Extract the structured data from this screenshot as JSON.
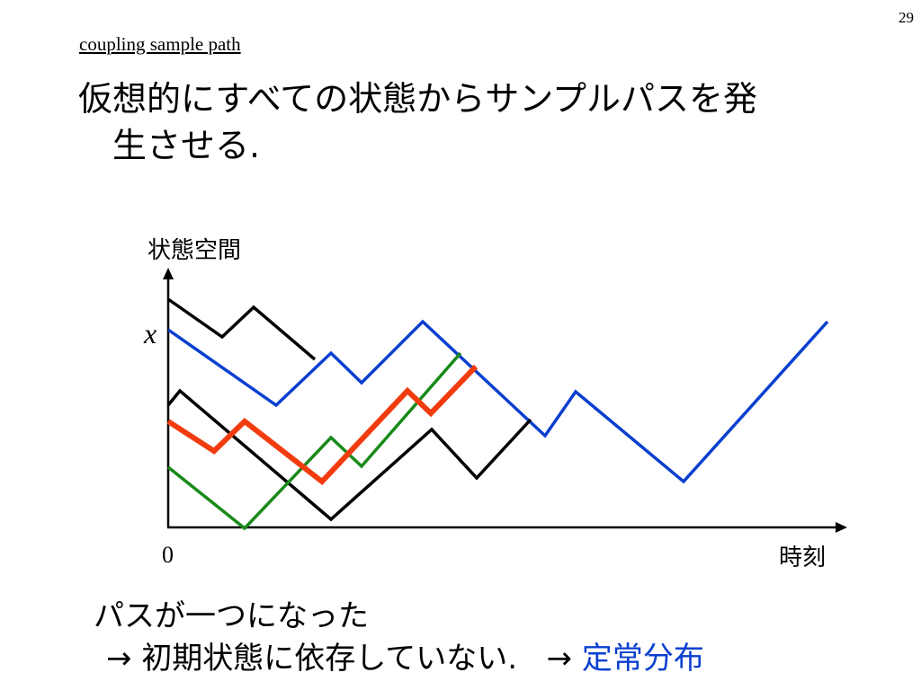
{
  "page_number": "29",
  "subtitle": "coupling sample path",
  "heading": {
    "line1": "仮想的にすべての状態からサンプルパスを発",
    "line2": "生させる."
  },
  "colors": {
    "black": "#000000",
    "blue": "#0a3fd0",
    "green": "#1a8a1a",
    "red": "#f23c0f",
    "accent": "#0a3fd0"
  },
  "chart_data": {
    "type": "line",
    "ylabel": "状態空間",
    "xlabel": "時刻",
    "origin_label": "0",
    "y_marker_label": "x",
    "y_marker_value": 367,
    "xlim": [
      0,
      930
    ],
    "ylim": [
      0,
      587
    ],
    "series": [
      {
        "color": "black",
        "width": 3.5,
        "x": [
          187,
          247,
          282,
          350
        ],
        "y": [
          333,
          375,
          342,
          400
        ]
      },
      {
        "color": "blue",
        "width": 3.5,
        "x": [
          187,
          307,
          368,
          402,
          470,
          606,
          640,
          760,
          920
        ],
        "y": [
          367,
          451,
          393,
          426,
          358,
          485,
          436,
          536,
          358
        ]
      },
      {
        "color": "black",
        "width": 3.5,
        "x": [
          187,
          200,
          368,
          480,
          530,
          590
        ],
        "y": [
          451,
          435,
          578,
          478,
          532,
          467
        ]
      },
      {
        "color": "green",
        "width": 3.5,
        "x": [
          187,
          272,
          368,
          402,
          512
        ],
        "y": [
          520,
          588,
          487,
          519,
          393
        ]
      },
      {
        "color": "red",
        "width": 6,
        "x": [
          187,
          238,
          272,
          358,
          453,
          479,
          529
        ],
        "y": [
          469,
          502,
          469,
          536,
          435,
          460,
          408
        ]
      }
    ]
  },
  "footer": {
    "line1": "パスが一つになった",
    "arrow1": "→",
    "line2_text": "初期状態に依存していない.",
    "arrow2": "→",
    "line2_accent": "定常分布"
  }
}
